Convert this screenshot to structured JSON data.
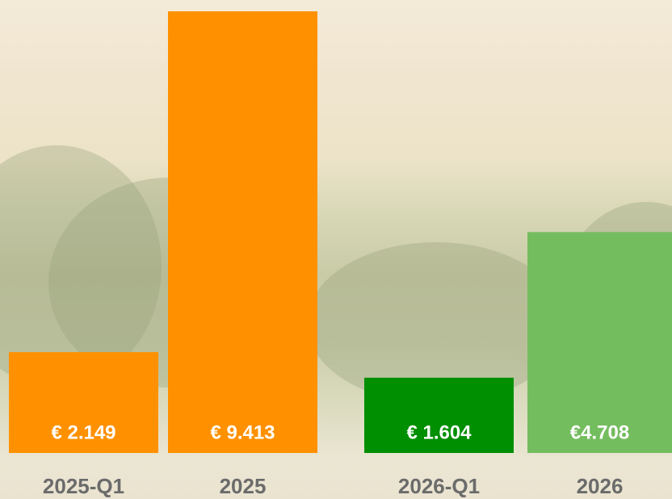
{
  "chart_data": {
    "type": "bar",
    "categories": [
      "2025-Q1",
      "2025",
      "2026-Q1",
      "2026"
    ],
    "values": [
      2149,
      9413,
      1604,
      4708
    ],
    "value_labels": [
      "€ 2.149",
      "€ 9.413",
      "€ 1.604",
      "€4.708"
    ],
    "colors": [
      "#ff9100",
      "#ff9100",
      "#008f00",
      "#74bd5f"
    ]
  }
}
